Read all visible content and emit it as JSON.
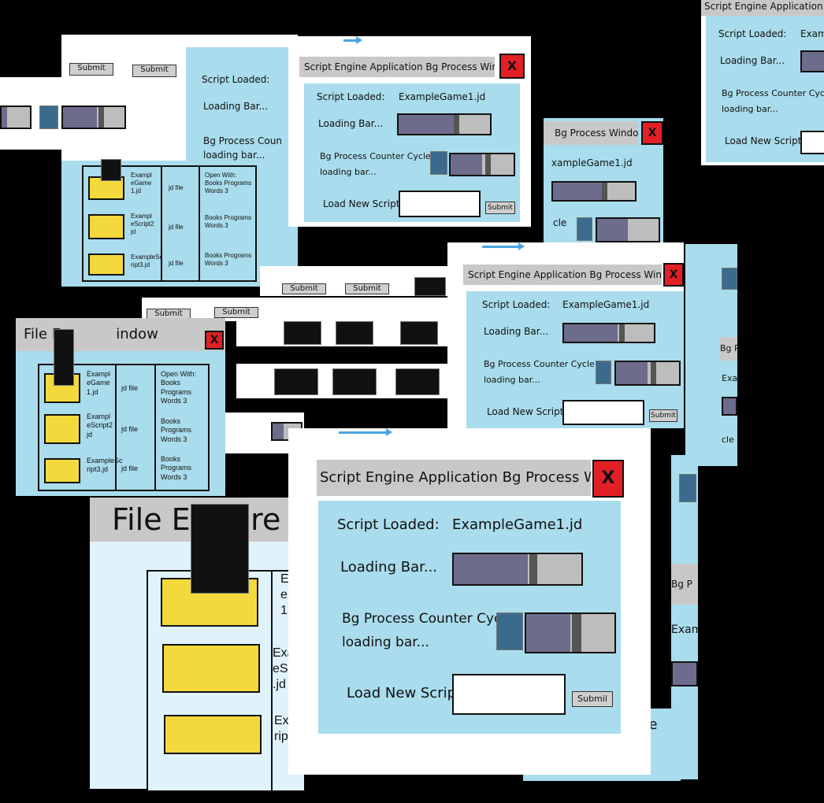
{
  "colors": {
    "background": "#000000",
    "client": "#a9dcec",
    "titlebar": "#c8c8c8",
    "close": "#e31f26",
    "folder": "#f3d93b",
    "bar_fill": "#6e6c8c",
    "bar_empty": "#bdbdbd",
    "accent_arrow": "#4aa3e0"
  },
  "bg_window": {
    "title": "Script Engine Application Bg Process Window",
    "title_clipped": "Script Engine Application Bg",
    "title_tail": "Bg Process Window",
    "close_glyph": "X",
    "script_loaded_label": "Script Loaded:",
    "script_loaded_value": "ExampleGame1.jd",
    "script_loaded_partial": "Examp",
    "script_loaded_partial2": "xampleGame1.jd",
    "loading_label": "Loading Bar...",
    "loading_progress": 0.6,
    "counter_label_1": "Bg Process Counter Cycle",
    "counter_label_1_partial": "Bg Process Coun",
    "counter_label_2": "loading bar...",
    "counter_label_2_partial": "loading bar...",
    "counter_tail": "cle",
    "counter_progress": 0.5,
    "load_label": "Load New Script:",
    "load_input_value": "",
    "submit_label": "Submit",
    "submit_label_alt": "Submil",
    "bg_partial": "Bg P",
    "cycle_partial": "cycle"
  },
  "explorer": {
    "title": "File Explorer Window",
    "title_partial": "File E",
    "title_tail": "indow",
    "big_title_partial": "File Ex",
    "big_title_partial_2": "re",
    "files": [
      {
        "name_1": "Exampl",
        "name_2": "eGame",
        "name_3": "1.jd",
        "type": "jd file",
        "open_with_1": "Open With:",
        "open_with_2": "Books Programs",
        "open_with_3": "Words 3"
      },
      {
        "name_1": "Exampl",
        "name_2": "eScript2",
        "name_3": "jd",
        "type": "jd file",
        "open_with_2": "Books Programs",
        "open_with_3": "Words 3"
      },
      {
        "name_1": "ExampleSc",
        "name_2": "ript3.jd",
        "type": "jd file",
        "open_with_2": "Books Programs",
        "open_with_3": "Words 3"
      }
    ],
    "big_files": [
      {
        "line_1": "Ex",
        "line_2": "e",
        "line_3": "1."
      },
      {
        "line_1": "Exa",
        "line_2": "eS",
        "line_3": ".jd"
      },
      {
        "line_1": "Ex",
        "line_2": "rip"
      }
    ]
  }
}
